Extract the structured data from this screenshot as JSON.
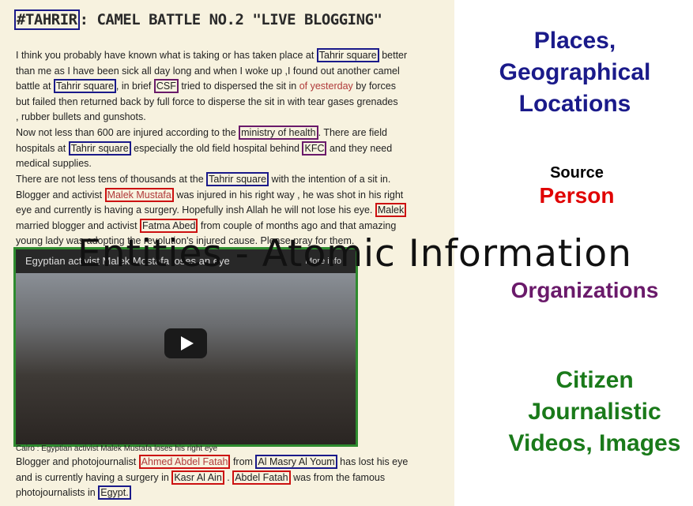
{
  "post": {
    "title_hashtag": "#TAHRIR",
    "title_rest": ": CAMEL BATTLE NO.2 \"LIVE BLOGGING\"",
    "p1": {
      "l1a": "I think you probably have known what is taking or has taken place at ",
      "l1b": "Tahrir square",
      "l1c": " better",
      "l2": "than me as I have been sick all day long and when I woke up ,I found out another camel",
      "l3a": "battle at ",
      "l3b": "Tahrir square",
      "l3c": ", in brief ",
      "l3d": "CSF",
      "l3e": " tried to dispersed the sit in ",
      "l3f": "of yesterday",
      "l3g": " by forces",
      "l4": "but failed then returned back by full force to disperse the sit in with tear gases grenades",
      "l5": ", rubber bullets and gunshots."
    },
    "p2": {
      "l1a": "Now not less than 600 are injured according to the ",
      "l1b": "ministry of health",
      "l1c": ". There are field",
      "l2a": "hospitals at ",
      "l2b": "Tahrir square",
      "l2c": " especially the old field hospital behind ",
      "l2d": "KFC",
      "l2e": " and they need",
      "l3": "medical supplies."
    },
    "p3": {
      "l1a": "There are not less tens of thousands at the ",
      "l1b": "Tahrir square",
      "l1c": " with the intention of a sit in.",
      "l2a": "Blogger and activist ",
      "l2b": "Malek Mustafa",
      "l2c": " was injured in his right way , he was shot in his right",
      "l3a": "eye and currently is having a surgery. Hopefully insh Allah he will not lose his eye. ",
      "l3b": "Malek",
      "l4a": "married blogger and activist ",
      "l4b": "Fatma Abed",
      "l4c": " from couple of months ago and that amazing",
      "l5": "young lady was adopting the revolution's injured cause. Please pray for them."
    },
    "video": {
      "title": "Egyptian activist Malek Mostafa loses an eye",
      "more": "More info"
    },
    "caption": "Cairo : Egyptian activist Malek Mustafa loses his right eye",
    "p4": {
      "l1a": "Blogger and photojournalist ",
      "l1b": "Ahmed Abdel Fatah",
      "l1c": " from ",
      "l1d": "Al Masry Al Youm",
      "l1e": " has lost his eye",
      "l2a": "and is currently having a surgery in ",
      "l2b": "Kasr Al Ain",
      "l2c": " . ",
      "l2d": "Abdel Fatah",
      "l2e": " was from the famous",
      "l3a": "photojournalists in ",
      "l3b": "Egypt."
    }
  },
  "overlay_title": "Entities - Atomic  Information",
  "legend": {
    "places": "Places, Geographical Locations",
    "source": "Source",
    "person": "Person",
    "organizations": "Organizations",
    "citizen": "Citizen Journalistic Videos, Images"
  },
  "colors": {
    "places": "#1a1a8a",
    "person": "#e00000",
    "organizations": "#6a1a6a",
    "citizen": "#1a7a1a"
  }
}
